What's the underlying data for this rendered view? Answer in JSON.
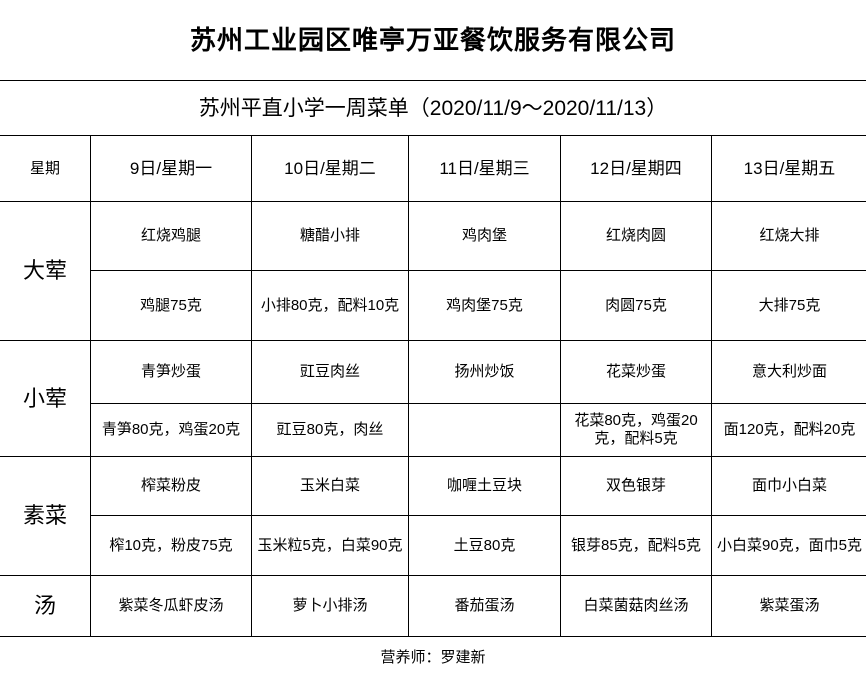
{
  "title": "苏州工业园区唯亭万亚餐饮服务有限公司",
  "subtitle": "苏州平直小学一周菜单（2020/11/9～2020/11/13）",
  "header": [
    "星期",
    "9日/星期一",
    "10日/星期二",
    "11日/星期三",
    "12日/星期四",
    "13日/星期五"
  ],
  "sections": [
    {
      "category": "大荤",
      "dishes": [
        "红烧鸡腿",
        "糖醋小排",
        "鸡肉堡",
        "红烧肉圆",
        "红烧大排"
      ],
      "portions": [
        "鸡腿75克",
        "小排80克，配料10克",
        "鸡肉堡75克",
        "肉圆75克",
        "大排75克"
      ]
    },
    {
      "category": "小荤",
      "dishes": [
        "青笋炒蛋",
        "豇豆肉丝",
        "扬州炒饭",
        "花菜炒蛋",
        "意大利炒面"
      ],
      "portions": [
        "青笋80克，鸡蛋20克",
        "豇豆80克，肉丝",
        "",
        "花菜80克，鸡蛋20克，配料5克",
        "面120克，配料20克"
      ]
    },
    {
      "category": "素菜",
      "dishes": [
        "榨菜粉皮",
        "玉米白菜",
        "咖喱土豆块",
        "双色银芽",
        "面巾小白菜"
      ],
      "portions": [
        "榨10克，粉皮75克",
        "玉米粒5克，白菜90克",
        "土豆80克",
        "银芽85克，配料5克",
        "小白菜90克，面巾5克"
      ]
    },
    {
      "category": "汤",
      "dishes": [
        "紫菜冬瓜虾皮汤",
        "萝卜小排汤",
        "番茄蛋汤",
        "白菜菌菇肉丝汤",
        "紫菜蛋汤"
      ]
    }
  ],
  "footer": "营养师：罗建新"
}
